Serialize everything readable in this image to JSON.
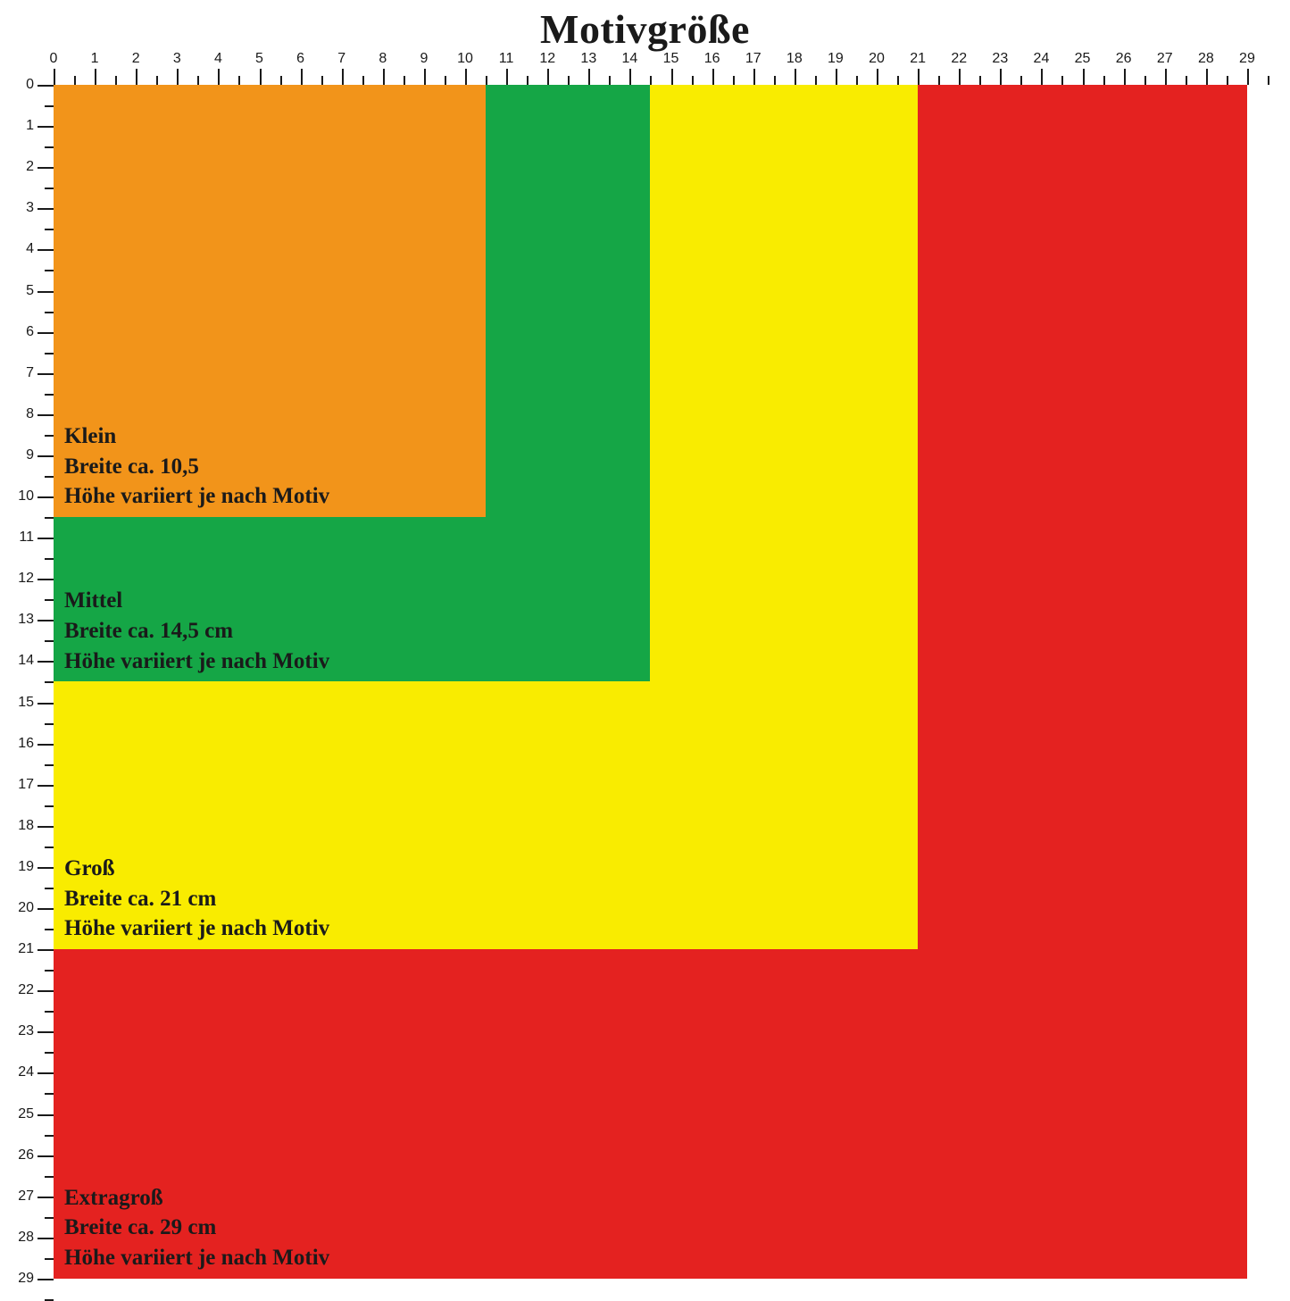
{
  "title": "Motivgröße",
  "units_cm_max": 29.5,
  "ruler": {
    "major_step": 1,
    "minor_offset": 0.5,
    "max_label": 29,
    "tick_color": "#1a1a1a",
    "label_fontsize": 16
  },
  "background_color": "#ffffff",
  "text_color": "#1a1a1a",
  "title_fontsize": 46,
  "label_fontsize": 25,
  "label_font_weight": 700,
  "boxes": [
    {
      "id": "extragross",
      "name": "Extragroß",
      "width_line": "Breite ca. 29 cm",
      "height_line": "Höhe variiert je nach Motiv",
      "size_cm": 29,
      "color": "#e42220",
      "z": 1
    },
    {
      "id": "gross",
      "name": "Groß",
      "width_line": "Breite ca. 21 cm",
      "height_line": "Höhe variiert je nach Motiv",
      "size_cm": 21,
      "color": "#f9ec00",
      "z": 2
    },
    {
      "id": "mittel",
      "name": "Mittel",
      "width_line": "Breite ca. 14,5 cm",
      "height_line": "Höhe variiert je nach Motiv",
      "size_cm": 14.5,
      "color": "#15a646",
      "z": 3
    },
    {
      "id": "klein",
      "name": "Klein",
      "width_line": "Breite ca. 10,5",
      "height_line": "Höhe variiert je nach Motiv",
      "size_cm": 10.5,
      "color": "#f2941a",
      "z": 4
    }
  ]
}
